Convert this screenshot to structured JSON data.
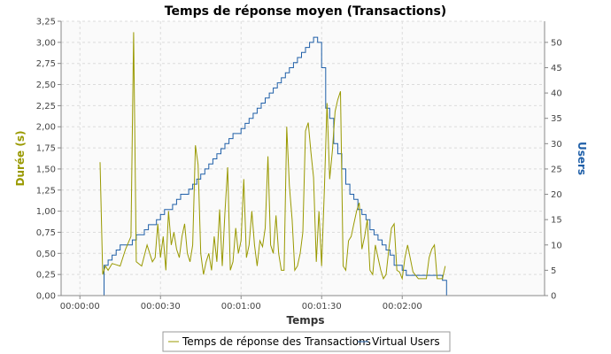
{
  "chart_data": {
    "type": "line",
    "title": "Temps de réponse moyen (Transactions)",
    "xlabel": "Temps",
    "ylabel_left": "Durée (s)",
    "ylabel_right": "Users",
    "x_unit": "seconds",
    "xlim": [
      -7,
      173
    ],
    "ylim_left": [
      0,
      3.25
    ],
    "ylim_right": [
      0,
      54.17
    ],
    "x_ticks": [
      {
        "value": 0,
        "label": "00:00:00"
      },
      {
        "value": 30,
        "label": "00:00:30"
      },
      {
        "value": 60,
        "label": "00:01:00"
      },
      {
        "value": 90,
        "label": "00:01:30"
      },
      {
        "value": 120,
        "label": "00:02:00"
      }
    ],
    "y_left_ticks": [
      "0,00",
      "0,25",
      "0,50",
      "0,75",
      "1,00",
      "1,25",
      "1,50",
      "1,75",
      "2,00",
      "2,25",
      "2,50",
      "2,75",
      "3,00",
      "3,25"
    ],
    "y_right_ticks": [
      "0",
      "5",
      "10",
      "15",
      "20",
      "25",
      "30",
      "35",
      "40",
      "45",
      "50"
    ],
    "grid": true,
    "legend_position": "bottom",
    "colors": {
      "response": "#999900",
      "users": "#1f5fa8",
      "left_axis": "#999900",
      "right_axis": "#1f5fa8"
    },
    "series": [
      {
        "name": "Temps de réponse des Transactions",
        "axis": "left",
        "x": [
          7.5,
          8.5,
          9.5,
          10.5,
          12,
          13,
          15,
          17,
          19,
          20,
          21,
          23,
          25,
          27,
          28,
          29,
          30,
          31,
          32,
          33,
          34,
          35,
          36,
          37,
          38,
          39,
          40,
          41,
          42,
          43,
          44,
          45,
          46,
          47,
          48,
          49,
          50,
          51,
          52,
          53,
          54,
          55,
          56,
          57,
          58,
          59,
          60,
          61,
          62,
          63,
          64,
          65,
          66,
          67,
          68,
          69,
          70,
          71,
          72,
          73,
          74,
          75,
          76,
          77,
          78,
          79,
          80,
          81,
          82,
          83,
          84,
          85,
          86,
          87,
          88,
          89,
          90,
          91,
          92,
          93,
          94,
          95,
          96,
          97,
          98,
          99,
          100,
          101,
          102,
          103,
          104,
          105,
          106,
          107,
          108,
          109,
          110,
          111,
          112,
          113,
          114,
          115,
          116,
          117,
          118,
          119,
          120,
          121,
          122,
          124,
          126,
          128,
          129,
          130,
          131,
          132,
          133,
          134,
          135,
          136
        ],
        "values": [
          1.58,
          0.25,
          0.35,
          0.3,
          0.38,
          0.37,
          0.35,
          0.55,
          0.7,
          3.12,
          0.4,
          0.35,
          0.6,
          0.4,
          0.45,
          0.85,
          0.45,
          0.7,
          0.3,
          1.0,
          0.6,
          0.75,
          0.55,
          0.45,
          0.7,
          0.85,
          0.5,
          0.4,
          0.6,
          1.78,
          1.55,
          0.5,
          0.25,
          0.4,
          0.5,
          0.3,
          0.7,
          0.4,
          1.02,
          0.35,
          0.98,
          1.52,
          0.3,
          0.4,
          0.8,
          0.5,
          0.65,
          1.38,
          0.45,
          0.6,
          1.0,
          0.6,
          0.35,
          0.65,
          0.58,
          0.8,
          1.65,
          0.6,
          0.5,
          0.95,
          0.5,
          0.3,
          0.3,
          2.0,
          1.3,
          0.9,
          0.3,
          0.35,
          0.5,
          0.75,
          1.95,
          2.05,
          1.7,
          1.4,
          0.4,
          1.0,
          0.35,
          1.25,
          2.28,
          1.38,
          1.72,
          2.18,
          2.32,
          2.42,
          0.35,
          0.3,
          0.65,
          0.7,
          0.85,
          1.0,
          1.1,
          0.55,
          0.7,
          0.9,
          0.3,
          0.25,
          0.6,
          0.45,
          0.3,
          0.2,
          0.25,
          0.55,
          0.8,
          0.85,
          0.3,
          0.28,
          0.2,
          0.45,
          0.6,
          0.28,
          0.2,
          0.2,
          0.2,
          0.45,
          0.55,
          0.6,
          0.2,
          0.2,
          0.2,
          0.35
        ]
      },
      {
        "name": "Virtual Users",
        "axis": "right",
        "x": [
          7.5,
          9,
          10.5,
          12,
          13.5,
          15,
          16.5,
          18,
          19.5,
          21,
          22.5,
          24,
          25.5,
          27,
          28.5,
          30,
          31.5,
          33,
          34.5,
          36,
          37.5,
          39,
          40.5,
          42,
          43.5,
          45,
          46.5,
          48,
          49.5,
          51,
          52.5,
          54,
          55.5,
          57,
          58.5,
          60,
          61.5,
          63,
          64.5,
          66,
          67.5,
          69,
          70.5,
          72,
          73.5,
          75,
          76.5,
          78,
          79.5,
          81,
          82.5,
          84,
          85.5,
          87,
          88.5,
          90,
          91.5,
          93,
          94.5,
          96,
          97.5,
          99,
          100.5,
          102,
          103.5,
          105,
          106.5,
          108,
          109.5,
          111,
          112.5,
          114,
          115.5,
          117,
          118.5,
          120,
          121.5,
          123,
          124.5,
          126,
          127.5,
          129,
          130.5,
          132,
          133.5,
          135,
          136.5
        ],
        "values": [
          0,
          6,
          7,
          8,
          9,
          10,
          10,
          10,
          11,
          12,
          12,
          13,
          14,
          14,
          15,
          16,
          17,
          17,
          18,
          19,
          20,
          20,
          21,
          22,
          23,
          24,
          25,
          26,
          27,
          28,
          29,
          30,
          31,
          32,
          32,
          33,
          34,
          35,
          36,
          37,
          38,
          39,
          40,
          41,
          42,
          43,
          44,
          45,
          46,
          47,
          48,
          49,
          50,
          51,
          50,
          45,
          37,
          35,
          30,
          28,
          25,
          22,
          20,
          19,
          17,
          16,
          15,
          13,
          12,
          11,
          10,
          9,
          8,
          6,
          6,
          5,
          4,
          4,
          4,
          4,
          4,
          4,
          4,
          4,
          4,
          3,
          0
        ]
      }
    ]
  }
}
